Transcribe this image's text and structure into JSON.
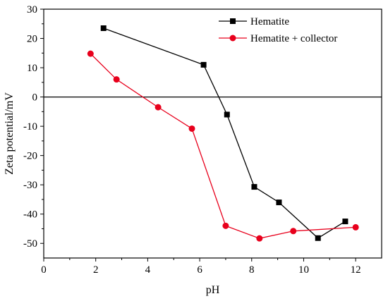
{
  "chart_data": {
    "type": "line",
    "xlabel": "pH",
    "ylabel": "Zeta potential/mV",
    "xlim": [
      0,
      13
    ],
    "ylim": [
      -55,
      30
    ],
    "xticks": [
      0,
      2,
      4,
      6,
      8,
      10,
      12
    ],
    "yticks": [
      30,
      20,
      10,
      0,
      -10,
      -20,
      -30,
      -40,
      -50
    ],
    "zero_line": true,
    "legend_position": "top-right",
    "series": [
      {
        "name": "Hematite",
        "color": "#000000",
        "marker": "square",
        "x": [
          2.3,
          6.15,
          7.05,
          8.1,
          9.05,
          10.55,
          11.6
        ],
        "y": [
          23.5,
          11.0,
          -6.0,
          -30.7,
          -36.0,
          -48.2,
          -42.5
        ]
      },
      {
        "name": "Hematite + collector",
        "color": "#e8001c",
        "marker": "circle",
        "x": [
          1.8,
          2.8,
          4.4,
          5.7,
          7.0,
          8.3,
          9.6,
          12.0
        ],
        "y": [
          14.8,
          6.0,
          -3.5,
          -10.8,
          -44.0,
          -48.3,
          -45.8,
          -44.5
        ]
      }
    ]
  }
}
